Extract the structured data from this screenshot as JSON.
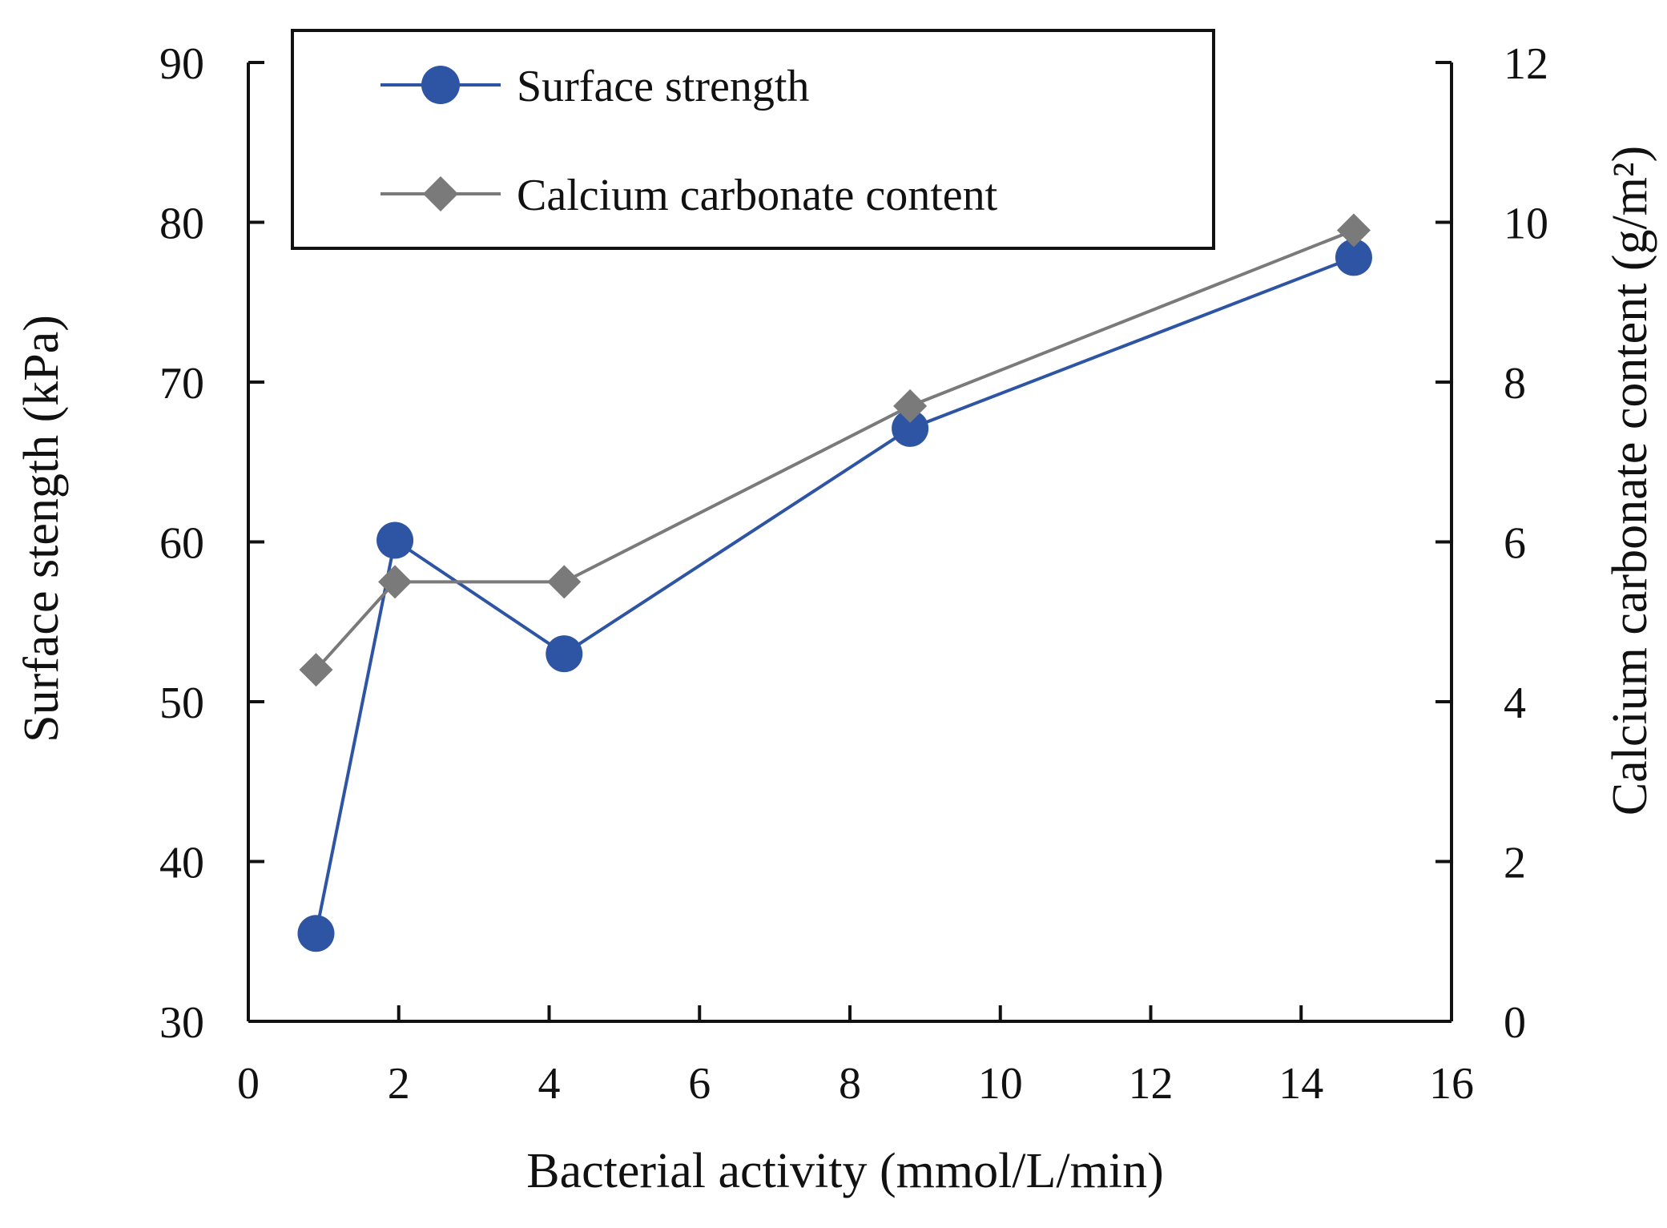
{
  "chart_data": {
    "type": "line",
    "title": "",
    "xlabel": "Bacterial activity (mmol/L/min)",
    "ylabel": "Surface stength (kPa)",
    "y2label": "Calcium carbonate content (g/m²)",
    "xlim": [
      0,
      16
    ],
    "ylim": [
      30,
      90
    ],
    "y2lim": [
      0,
      12
    ],
    "x_ticks": [
      "0",
      "2",
      "4",
      "6",
      "8",
      "10",
      "12",
      "14",
      "16"
    ],
    "y_ticks": [
      "30",
      "40",
      "50",
      "60",
      "70",
      "80",
      "90"
    ],
    "y2_ticks": [
      "0",
      "2",
      "4",
      "6",
      "8",
      "10",
      "12"
    ],
    "grid": false,
    "legend_position": "top-left",
    "series": [
      {
        "name": "Surface strength",
        "axis": "left",
        "marker": "circle",
        "color": "#2e54a4",
        "x": [
          0.9,
          1.95,
          4.2,
          8.8,
          14.7
        ],
        "y": [
          35.5,
          60.1,
          53.0,
          67.1,
          77.8
        ]
      },
      {
        "name": "Calcium carbonate content",
        "axis": "right",
        "marker": "diamond",
        "color": "#7a7a7a",
        "x": [
          0.9,
          1.95,
          4.2,
          8.8,
          14.7
        ],
        "y": [
          4.4,
          5.5,
          5.5,
          7.7,
          9.9
        ]
      }
    ]
  }
}
